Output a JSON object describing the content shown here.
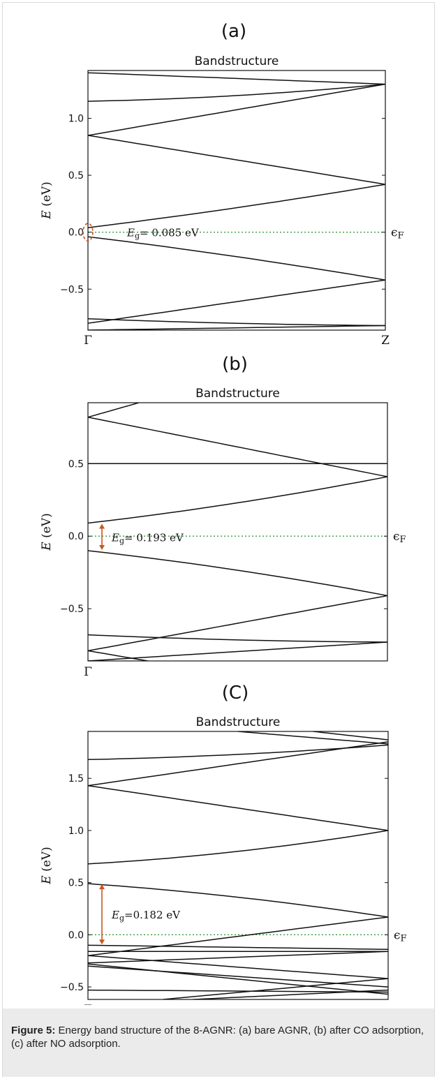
{
  "caption": {
    "label": "Figure 5:",
    "text": " Energy band structure of the 8-AGNR: (a) bare AGNR, (b) after CO adsorption, (c) after NO adsorption."
  },
  "colors": {
    "bands": "#111111",
    "fermi_line": "#3a9a3a",
    "gap_marker": "#c8571b"
  },
  "chart_data": [
    {
      "type": "line",
      "panel_label": "(a)",
      "title": "Bandstructure",
      "ylabel": "E (eV)",
      "xlabel": "",
      "x_tick_labels": [
        "Γ",
        "Z"
      ],
      "x": [
        0,
        1
      ],
      "ylim": [
        -0.86,
        1.42
      ],
      "yticks": [
        -0.5,
        0.0,
        0.5,
        1.0
      ],
      "ytick_labels": [
        "−0.5",
        "0.0",
        "0.5",
        "1.0"
      ],
      "fermi_level": {
        "label": "ϵF",
        "value": 0.0
      },
      "gap_annotation": {
        "text": "Eg= 0.085 eV",
        "value_eV": 0.085,
        "marker": "ellipse"
      },
      "grid": false,
      "series": [
        {
          "curvature": 0.05,
          "values": [
            1.15,
            1.3
          ]
        },
        {
          "values": [
            0.85,
            1.3
          ]
        },
        {
          "values": [
            0.85,
            0.42
          ]
        },
        {
          "curvature": 0.03,
          "values": [
            0.04,
            0.42
          ]
        },
        {
          "curvature": -0.03,
          "values": [
            -0.04,
            -0.42
          ]
        },
        {
          "values": [
            -0.8,
            -0.42
          ]
        },
        {
          "curvature": 0.02,
          "values": [
            -0.76,
            -0.82
          ]
        },
        {
          "values": [
            -0.86,
            -0.82
          ]
        },
        {
          "values": [
            1.4,
            1.3
          ]
        }
      ]
    },
    {
      "type": "line",
      "panel_label": "(b)",
      "title": "Bandstructure",
      "ylabel": "E (eV)",
      "xlabel": "",
      "x_tick_labels": [
        "Γ"
      ],
      "x": [
        0,
        1
      ],
      "ylim": [
        -0.86,
        0.92
      ],
      "yticks": [
        -0.5,
        0.0,
        0.5
      ],
      "ytick_labels": [
        "−0.5",
        "0.0",
        "0.5"
      ],
      "fermi_level": {
        "label": "ϵF",
        "value": 0.0
      },
      "gap_annotation": {
        "text": "Eg= 0.193 eV",
        "value_eV": 0.193,
        "marker": "arrow"
      },
      "grid": false,
      "series": [
        {
          "values": [
            0.82,
            0.92
          ],
          "x_end": 0.17
        },
        {
          "values": [
            0.5,
            0.5
          ]
        },
        {
          "values": [
            0.82,
            0.41
          ]
        },
        {
          "curvature": 0.04,
          "values": [
            0.09,
            0.41
          ]
        },
        {
          "curvature": -0.04,
          "values": [
            -0.1,
            -0.41
          ]
        },
        {
          "values": [
            -0.79,
            -0.41
          ]
        },
        {
          "curvature": 0.02,
          "values": [
            -0.68,
            -0.73
          ]
        },
        {
          "values": [
            -0.86,
            -0.73
          ]
        },
        {
          "values": [
            -0.79,
            -0.86
          ],
          "x_end": 0.2
        }
      ]
    },
    {
      "type": "line",
      "panel_label": "(C)",
      "title": "Bandstructure",
      "ylabel": "E (eV)",
      "xlabel": "",
      "x_tick_labels": [
        "Γ"
      ],
      "x": [
        0,
        1
      ],
      "ylim": [
        -0.62,
        1.95
      ],
      "yticks": [
        -0.5,
        0.0,
        0.5,
        1.0,
        1.5
      ],
      "ytick_labels": [
        "−0.5",
        "0.0",
        "0.5",
        "1.0",
        "1.5"
      ],
      "fermi_level": {
        "label": "ϵF",
        "value": 0.0
      },
      "gap_annotation": {
        "text": "Eg=0.182 eV",
        "value_eV": 0.182,
        "marker": "arrow"
      },
      "grid": false,
      "series": [
        {
          "curvature": 0.04,
          "values": [
            1.68,
            1.82
          ]
        },
        {
          "values": [
            1.43,
            1.85
          ]
        },
        {
          "values": [
            1.43,
            1.0
          ]
        },
        {
          "curvature": 0.08,
          "values": [
            0.68,
            1.0
          ]
        },
        {
          "curvature": -0.06,
          "values": [
            0.49,
            0.17
          ]
        },
        {
          "values": [
            -0.2,
            0.17
          ]
        },
        {
          "values": [
            -0.1,
            -0.14
          ]
        },
        {
          "values": [
            -0.16,
            -0.16
          ]
        },
        {
          "values": [
            -0.27,
            -0.16
          ]
        },
        {
          "values": [
            -0.2,
            -0.42
          ]
        },
        {
          "values": [
            -0.3,
            -0.5
          ]
        },
        {
          "values": [
            -0.28,
            -0.57
          ]
        },
        {
          "values": [
            -0.53,
            -0.55
          ]
        },
        {
          "values": [
            -0.62,
            -0.42
          ],
          "x_start": 0.25
        },
        {
          "values": [
            -0.62,
            -0.53
          ],
          "x_start": 0.35
        },
        {
          "values": [
            1.95,
            1.87
          ],
          "x_start": 0.75
        },
        {
          "values": [
            1.95,
            1.83
          ],
          "x_start": 0.5
        }
      ]
    }
  ]
}
